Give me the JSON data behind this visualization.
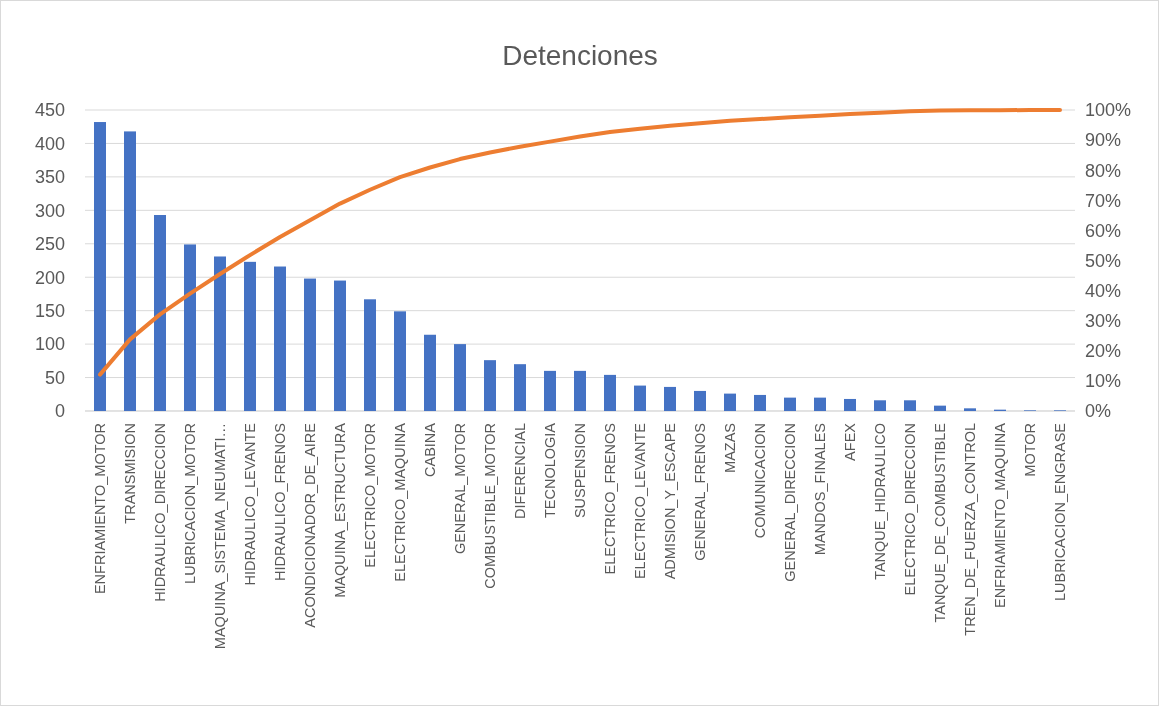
{
  "chart_data": {
    "type": "bar",
    "title": "Detenciones",
    "categories": [
      "ENFRIAMIENTO_MOTOR",
      "TRANSMISION",
      "HIDRAULICO_DIRECCION",
      "LUBRICACION_MOTOR",
      "MAQUINA_SISTEMA_NEUMATI…",
      "HIDRAULICO_LEVANTE",
      "HIDRAULICO_FRENOS",
      "ACONDICIONADOR_DE_AIRE",
      "MAQUINA_ESTRUCTURA",
      "ELECTRICO_MOTOR",
      "ELECTRICO_MAQUINA",
      "CABINA",
      "GENERAL_MOTOR",
      "COMBUSTIBLE_MOTOR",
      "DIFERENCIAL",
      "TECNOLOGIA",
      "SUSPENSION",
      "ELECTRICO_FRENOS",
      "ELECTRICO_LEVANTE",
      "ADMISION_Y_ESCAPE",
      "GENERAL_FRENOS",
      "MAZAS",
      "COMUNICACION",
      "GENERAL_DIRECCION",
      "MANDOS_FINALES",
      "AFEX",
      "TANQUE_HIDRAULICO",
      "ELECTRICO_DIRECCION",
      "TANQUE_DE_COMBUSTIBLE",
      "TREN_DE_FUERZA_CONTROL",
      "ENFRIAMIENTO_MAQUINA",
      "MOTOR",
      "LUBRICACION_ENGRASE"
    ],
    "series": [
      {
        "color": "#4472c4",
        "values": [
          432,
          418,
          293,
          249,
          231,
          223,
          216,
          198,
          195,
          167,
          149,
          114,
          100,
          76,
          70,
          60,
          60,
          54,
          38,
          36,
          30,
          26,
          24,
          20,
          20,
          18,
          16,
          16,
          8,
          4,
          2,
          1,
          1
        ]
      },
      {
        "type": "line",
        "axis": "y2",
        "color": "#ed7d31",
        "values": [
          12.1,
          23.8,
          32.1,
          39.0,
          45.5,
          51.8,
          57.8,
          63.4,
          68.9,
          73.5,
          77.7,
          80.9,
          83.7,
          85.9,
          87.8,
          89.5,
          91.2,
          92.7,
          93.8,
          94.8,
          95.6,
          96.4,
          97.0,
          97.6,
          98.1,
          98.7,
          99.1,
          99.6,
          99.8,
          99.9,
          99.9,
          100,
          100
        ]
      }
    ],
    "ylim": [
      0,
      450
    ],
    "yticks": [
      0,
      50,
      100,
      150,
      200,
      250,
      300,
      350,
      400,
      450
    ],
    "y2lim": [
      0,
      100
    ],
    "y2ticks": [
      {
        "value": 0,
        "label": "0%"
      },
      {
        "value": 10,
        "label": "10%"
      },
      {
        "value": 20,
        "label": "20%"
      },
      {
        "value": 30,
        "label": "30%"
      },
      {
        "value": 40,
        "label": "40%"
      },
      {
        "value": 50,
        "label": "50%"
      },
      {
        "value": 60,
        "label": "60%"
      },
      {
        "value": 70,
        "label": "70%"
      },
      {
        "value": 80,
        "label": "80%"
      },
      {
        "value": 90,
        "label": "90%"
      },
      {
        "value": 100,
        "label": "100%"
      }
    ],
    "grid": "y"
  }
}
